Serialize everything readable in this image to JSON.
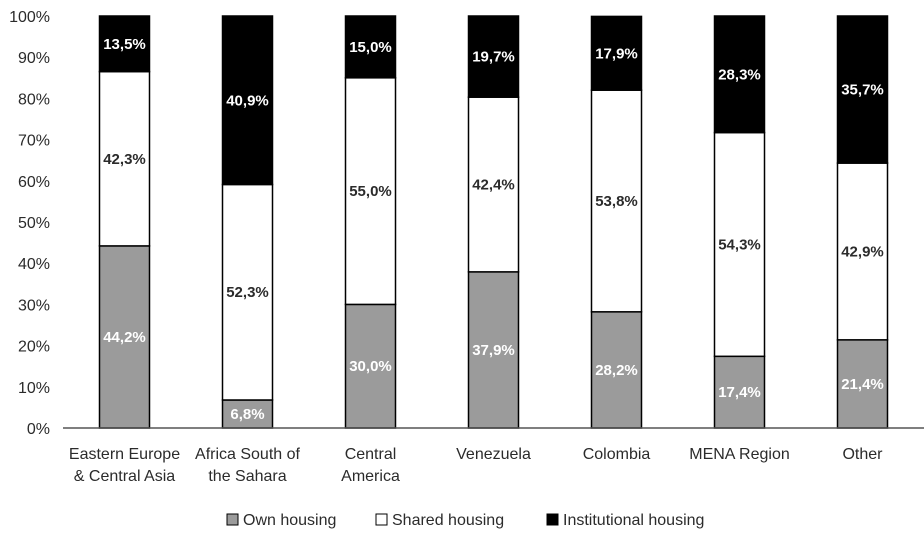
{
  "chart_data": {
    "type": "bar",
    "stacked": true,
    "categories": [
      [
        "Eastern Europe",
        "& Central Asia"
      ],
      [
        "Africa South of",
        "the Sahara"
      ],
      [
        "Central",
        "America"
      ],
      [
        "Venezuela"
      ],
      [
        "Colombia"
      ],
      [
        "MENA Region"
      ],
      [
        "Other"
      ]
    ],
    "series": [
      {
        "name": "Own housing",
        "color": "#9b9b9b",
        "label_color": "#ffffff",
        "values": [
          44.2,
          6.8,
          30.0,
          37.9,
          28.2,
          17.4,
          21.4
        ],
        "labels": [
          "44,2%",
          "6,8%",
          "30,0%",
          "37,9%",
          "28,2%",
          "17,4%",
          "21,4%"
        ]
      },
      {
        "name": "Shared housing",
        "color": "#ffffff",
        "label_color": "#2b2b2b",
        "values": [
          42.3,
          52.3,
          55.0,
          42.4,
          53.8,
          54.3,
          42.9
        ],
        "labels": [
          "42,3%",
          "52,3%",
          "55,0%",
          "42,4%",
          "53,8%",
          "54,3%",
          "42,9%"
        ]
      },
      {
        "name": "Institutional housing",
        "color": "#000000",
        "label_color": "#ffffff",
        "values": [
          13.5,
          40.9,
          15.0,
          19.7,
          17.9,
          28.3,
          35.7
        ],
        "labels": [
          "13,5%",
          "40,9%",
          "15,0%",
          "19,7%",
          "17,9%",
          "28,3%",
          "35,7%"
        ]
      }
    ],
    "ylim": [
      0,
      100
    ],
    "yticks": [
      "0%",
      "10%",
      "20%",
      "30%",
      "40%",
      "50%",
      "60%",
      "70%",
      "80%",
      "90%",
      "100%"
    ],
    "grid": false,
    "legend_position": "bottom"
  }
}
